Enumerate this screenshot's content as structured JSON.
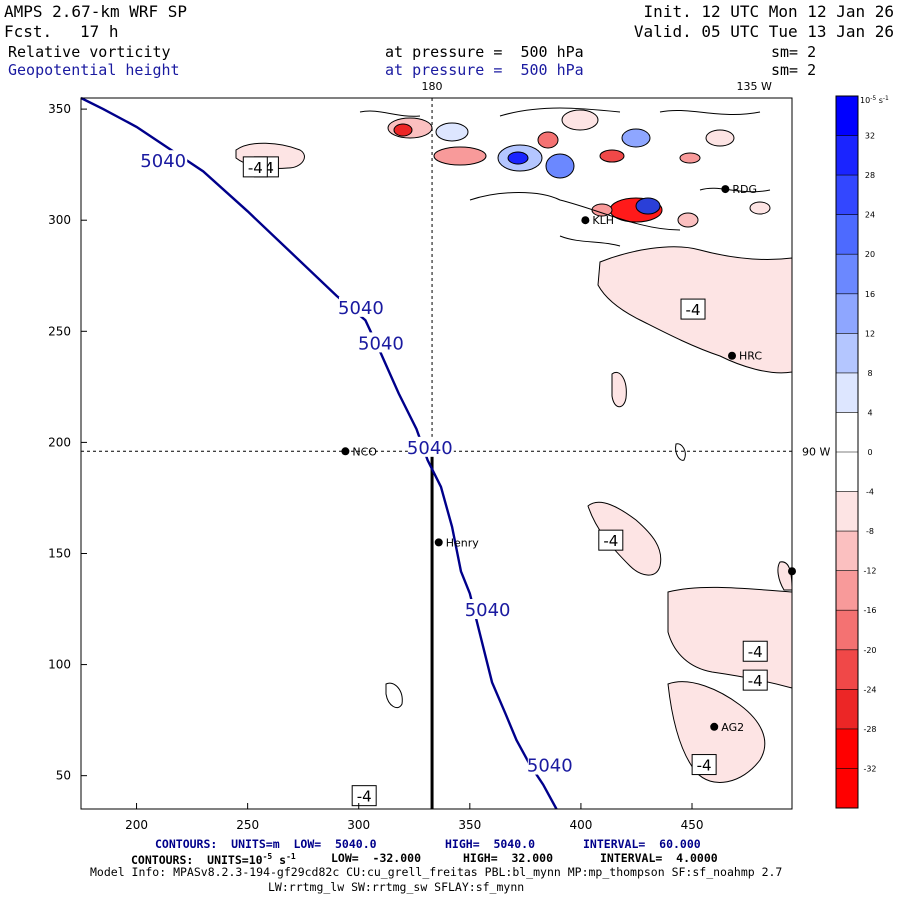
{
  "header": {
    "model": "AMPS 2.67-km WRF SP",
    "fcst_label": "Fcst.",
    "fcst_value": "17 h",
    "init": "Init. 12 UTC Mon 12 Jan 26",
    "valid": "Valid. 05 UTC Tue 13 Jan 26",
    "field1": "Relative vorticity",
    "field1_pressure": "at pressure =  500 hPa",
    "field1_sm": "sm= 2",
    "field2": "Geopotential height",
    "field2_pressure": "at pressure =  500 hPa",
    "field2_sm": "sm= 2"
  },
  "colors": {
    "height_contour": "#00008b",
    "neg_fill": "#fde4e4",
    "blob_red": "#ff1a1a",
    "blob_blue": "#2a3fd8"
  },
  "footer": {
    "line1_prefix": "CONTOURS:  UNITS=m  LOW=  5040.0",
    "line1_high": "HIGH=  5040.0",
    "line1_interval": "INTERVAL=  60.000",
    "line2_prefix": "CONTOURS:  UNITS=10",
    "line2_exp": "-5",
    "line2_s": "s",
    "line2_sexp": "-1",
    "line2_low": "LOW=  -32.000",
    "line2_high": "HIGH=  32.000",
    "line2_interval": "INTERVAL=  4.0000",
    "line3": "Model Info: MPASv8.2.3-194-gf29cd82c CU:cu_grell_freitas PBL:bl_mynn MP:mp_thompson SF:sf_noahmp 2.7",
    "line4": "LW:rrtmg_lw SW:rrtmg_sw SFLAY:sf_mynn"
  },
  "chart_data": {
    "type": "contour",
    "title": "Relative vorticity and Geopotential height at 500 hPa",
    "xlim": [
      175,
      495
    ],
    "ylim": [
      35,
      355
    ],
    "x_ticks": [
      200,
      250,
      300,
      350,
      400,
      450
    ],
    "y_ticks": [
      50,
      100,
      150,
      200,
      250,
      300,
      350
    ],
    "top_labels": [
      {
        "text": "180",
        "x": 333
      },
      {
        "text": "135 W",
        "x": 478
      }
    ],
    "right_labels": [
      {
        "text": "90 W",
        "y": 196
      }
    ],
    "meridian_x": 333,
    "parallel_y": 196,
    "cross_section": {
      "x": 333,
      "y_from": 35,
      "y_to": 196
    },
    "height_contour": {
      "value": 5040,
      "points": [
        [
          175,
          355
        ],
        [
          185,
          350
        ],
        [
          200,
          342
        ],
        [
          215,
          332
        ],
        [
          230,
          322
        ],
        [
          250,
          304
        ],
        [
          270,
          285
        ],
        [
          290,
          266
        ],
        [
          303,
          255
        ],
        [
          310,
          240
        ],
        [
          318,
          222
        ],
        [
          326,
          206
        ],
        [
          331,
          192
        ],
        [
          337,
          180
        ],
        [
          342,
          162
        ],
        [
          346,
          142
        ],
        [
          350,
          132
        ],
        [
          355,
          112
        ],
        [
          360,
          92
        ],
        [
          366,
          78
        ],
        [
          371,
          66
        ],
        [
          377,
          55
        ],
        [
          383,
          46
        ],
        [
          389,
          35
        ]
      ],
      "labels": [
        {
          "text": "5040",
          "x": 212,
          "y": 327
        },
        {
          "text": "5040",
          "x": 301,
          "y": 261
        },
        {
          "text": "5040",
          "x": 310,
          "y": 245
        },
        {
          "text": "5040",
          "x": 332,
          "y": 198
        },
        {
          "text": "5040",
          "x": 358,
          "y": 125
        },
        {
          "text": "5040",
          "x": 386,
          "y": 55
        }
      ]
    },
    "vorticity_labels": [
      {
        "text": "-4",
        "x": 258,
        "y": 324
      },
      {
        "text": "-4",
        "x": 253,
        "y": 324
      },
      {
        "text": "-4",
        "x": 450,
        "y": 260
      },
      {
        "text": "-4",
        "x": 413,
        "y": 156
      },
      {
        "text": "-4",
        "x": 478,
        "y": 106
      },
      {
        "text": "-4",
        "x": 478,
        "y": 93
      },
      {
        "text": "-4",
        "x": 455,
        "y": 55
      },
      {
        "text": "-4",
        "x": 302,
        "y": 41
      }
    ],
    "stations": [
      {
        "name": "RDG",
        "x": 465,
        "y": 314
      },
      {
        "name": "KLH",
        "x": 402,
        "y": 300
      },
      {
        "name": "HRC",
        "x": 468,
        "y": 239
      },
      {
        "name": "NCO",
        "x": 294,
        "y": 196
      },
      {
        "name": "Henry",
        "x": 336,
        "y": 155
      },
      {
        "name": "AG2",
        "x": 460,
        "y": 72
      },
      {
        "name": "",
        "x": 495,
        "y": 142
      }
    ],
    "colorbar": {
      "unit_base": "10",
      "unit_exp": "-5",
      "unit_s": "s",
      "unit_sexp": "-1",
      "levels": [
        "32",
        "28",
        "24",
        "20",
        "16",
        "12",
        "8",
        "4",
        "0",
        "-4",
        "-8",
        "-12",
        "-16",
        "-20",
        "-24",
        "-28",
        "-32"
      ],
      "colors": [
        "#0000ff",
        "#1a24ff",
        "#3347ff",
        "#4d6aff",
        "#6b88ff",
        "#8ea6ff",
        "#b4c6ff",
        "#dde6ff",
        "#ffffff",
        "#ffffff",
        "#fde4e4",
        "#fbc0c0",
        "#f89a9a",
        "#f47272",
        "#f04848",
        "#ec2626",
        "#ff0000",
        "#ff0000"
      ]
    }
  }
}
